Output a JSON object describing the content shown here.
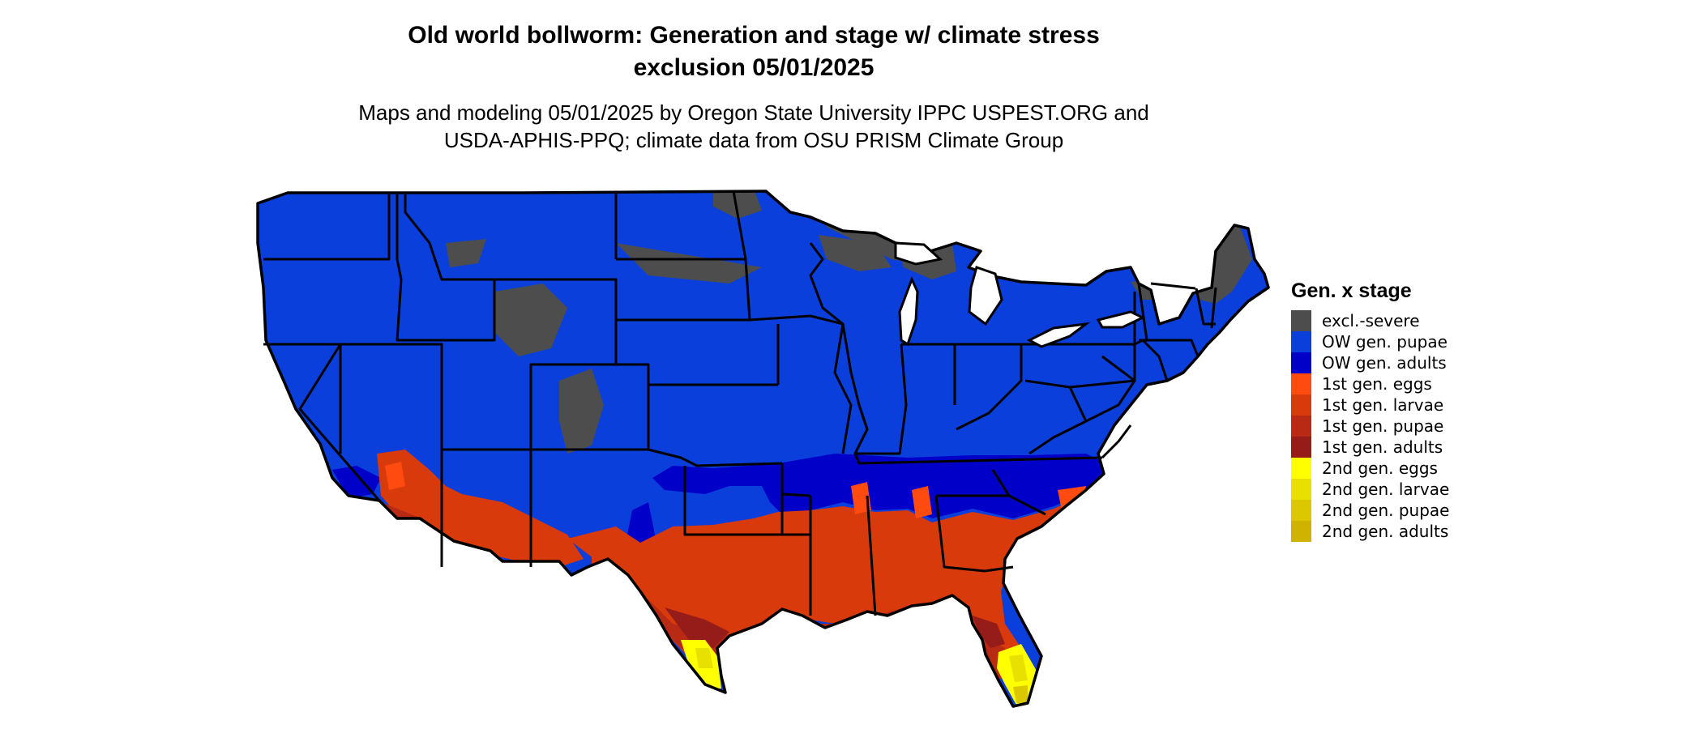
{
  "title_line1": "Old world bollworm: Generation and stage w/ climate stress",
  "title_line2": "exclusion 05/01/2025",
  "subtitle_line1": "Maps and modeling 05/01/2025 by Oregon State University IPPC USPEST.ORG and",
  "subtitle_line2": "USDA-APHIS-PPQ; climate data from OSU PRISM Climate Group",
  "map": {
    "region": "conterminous United States",
    "border_color": "#000000",
    "zones": [
      {
        "name": "excl.-severe",
        "color": "#4d4d4d"
      },
      {
        "name": "OW gen. pupae",
        "color": "#0a3fdb"
      },
      {
        "name": "OW gen. adults",
        "color": "#0000c8"
      },
      {
        "name": "1st gen. eggs",
        "color": "#ff4a10"
      },
      {
        "name": "1st gen. larvae",
        "color": "#d83a0c"
      },
      {
        "name": "1st gen. pupae",
        "color": "#b82a14"
      },
      {
        "name": "1st gen. adults",
        "color": "#951c18"
      },
      {
        "name": "2nd gen. eggs",
        "color": "#ffff00"
      },
      {
        "name": "2nd gen. larvae",
        "color": "#e8e000"
      },
      {
        "name": "2nd gen. pupae",
        "color": "#dcc800"
      },
      {
        "name": "2nd gen. adults",
        "color": "#d0b200"
      }
    ]
  },
  "legend": {
    "title": "Gen. x stage",
    "items": [
      {
        "label": "excl.-severe",
        "color": "#4d4d4d"
      },
      {
        "label": "OW gen. pupae",
        "color": "#0a3fdb"
      },
      {
        "label": "OW gen. adults",
        "color": "#0000c8"
      },
      {
        "label": "1st gen. eggs",
        "color": "#ff4a10"
      },
      {
        "label": "1st gen. larvae",
        "color": "#d83a0c"
      },
      {
        "label": "1st gen. pupae",
        "color": "#b82a14"
      },
      {
        "label": "1st gen. adults",
        "color": "#951c18"
      },
      {
        "label": "2nd gen. eggs",
        "color": "#ffff00"
      },
      {
        "label": "2nd gen. larvae",
        "color": "#e8e000"
      },
      {
        "label": "2nd gen. pupae",
        "color": "#dcc800"
      },
      {
        "label": "2nd gen. adults",
        "color": "#d0b200"
      }
    ]
  }
}
